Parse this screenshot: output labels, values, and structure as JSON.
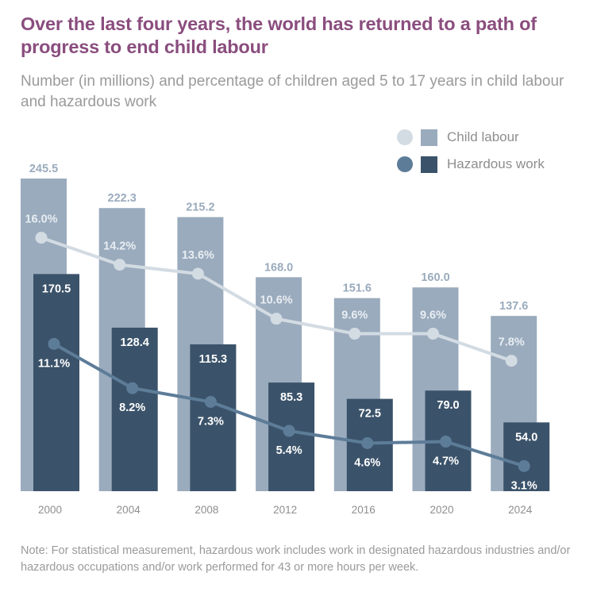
{
  "header": {
    "title": "Over the last four years, the world has returned to a path of progress to end child labour",
    "subtitle": "Number (in millions) and percentage of children aged 5 to 17 years in child labour and hazardous work"
  },
  "legend": {
    "items": [
      {
        "label": "Child labour",
        "dot_color": "#d3dbe3",
        "bar_color": "#9aabbd"
      },
      {
        "label": "Hazardous work",
        "dot_color": "#5d7c98",
        "bar_color": "#3b536a"
      }
    ]
  },
  "note": "Note: For statistical measurement, hazardous work includes work in designated hazardous industries and/or hazardous occupations and/or work performed for 43 or more hours per week.",
  "chart_data": {
    "type": "bar",
    "title": "Over the last four years, the world has returned to a path of progress to end child labour",
    "subtitle": "Number (in millions) and percentage of children aged 5 to 17 years in child labour and hazardous work",
    "xlabel": "",
    "ylabel": "",
    "grid": false,
    "legend_position": "top-right",
    "categories": [
      "2000",
      "2004",
      "2008",
      "2012",
      "2016",
      "2020",
      "2024"
    ],
    "series": [
      {
        "name": "Child labour",
        "kind": "bar",
        "unit": "millions",
        "values": [
          245.5,
          222.3,
          215.2,
          168.0,
          151.6,
          160.0,
          137.6
        ],
        "labels": [
          "245.5",
          "222.3",
          "215.2",
          "168.0",
          "151.6",
          "160.0",
          "137.6"
        ],
        "color": "#9aabbd",
        "label_color": "#9aabbd"
      },
      {
        "name": "Hazardous work",
        "kind": "bar",
        "unit": "millions",
        "values": [
          170.5,
          128.4,
          115.3,
          85.3,
          72.5,
          79.0,
          54.0
        ],
        "labels": [
          "170.5",
          "128.4",
          "115.3",
          "85.3",
          "72.5",
          "79.0",
          "54.0"
        ],
        "color": "#3b536a",
        "label_color": "#ffffff"
      },
      {
        "name": "Child labour (%)",
        "kind": "line",
        "unit": "percent",
        "values": [
          16.0,
          14.2,
          13.6,
          10.6,
          9.6,
          9.6,
          7.8
        ],
        "labels": [
          "16.0%",
          "14.2%",
          "13.6%",
          "10.6%",
          "9.6%",
          "9.6%",
          "7.8%"
        ],
        "color": "#d3dbe3",
        "label_color": "#e8edf2"
      },
      {
        "name": "Hazardous work (%)",
        "kind": "line",
        "unit": "percent",
        "values": [
          11.1,
          8.2,
          7.3,
          5.4,
          4.6,
          4.7,
          3.1
        ],
        "labels": [
          "11.1%",
          "8.2%",
          "7.3%",
          "5.4%",
          "4.6%",
          "4.7%",
          "3.1%"
        ],
        "color": "#5d7c98",
        "label_color": "#ffffff"
      }
    ],
    "ylim": [
      0,
      250
    ]
  }
}
